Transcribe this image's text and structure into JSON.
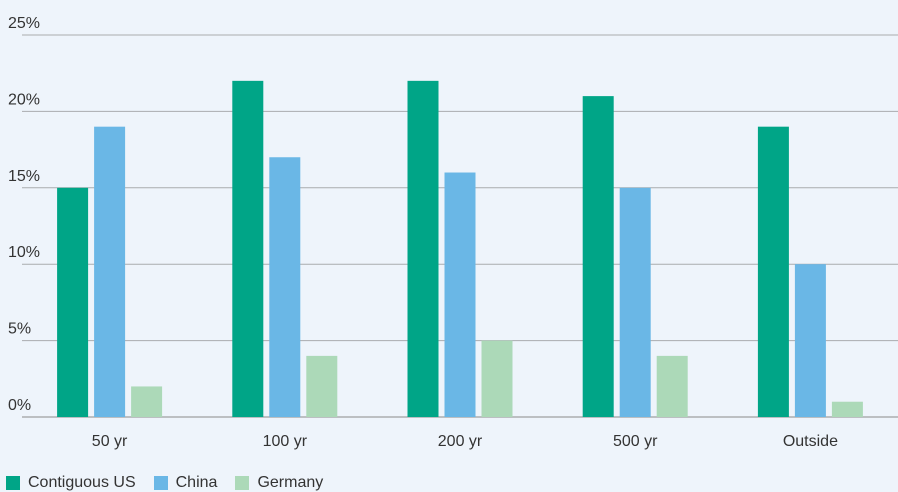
{
  "chart_data": {
    "type": "bar",
    "categories": [
      "50 yr",
      "100 yr",
      "200 yr",
      "500 yr",
      "Outside"
    ],
    "series": [
      {
        "name": "Contiguous US",
        "color": "#00a587",
        "values": [
          15,
          22,
          22,
          21,
          19
        ]
      },
      {
        "name": "China",
        "color": "#6ab7e6",
        "values": [
          19,
          17,
          16,
          15,
          10
        ]
      },
      {
        "name": "Germany",
        "color": "#acd9b8",
        "values": [
          2,
          4,
          5,
          4,
          1
        ]
      }
    ],
    "y_ticks": [
      "0%",
      "5%",
      "10%",
      "15%",
      "20%",
      "25%"
    ],
    "ylim": [
      0,
      25
    ],
    "grid": true,
    "legend_position": "bottom-left",
    "title": "",
    "xlabel": "",
    "ylabel": ""
  }
}
